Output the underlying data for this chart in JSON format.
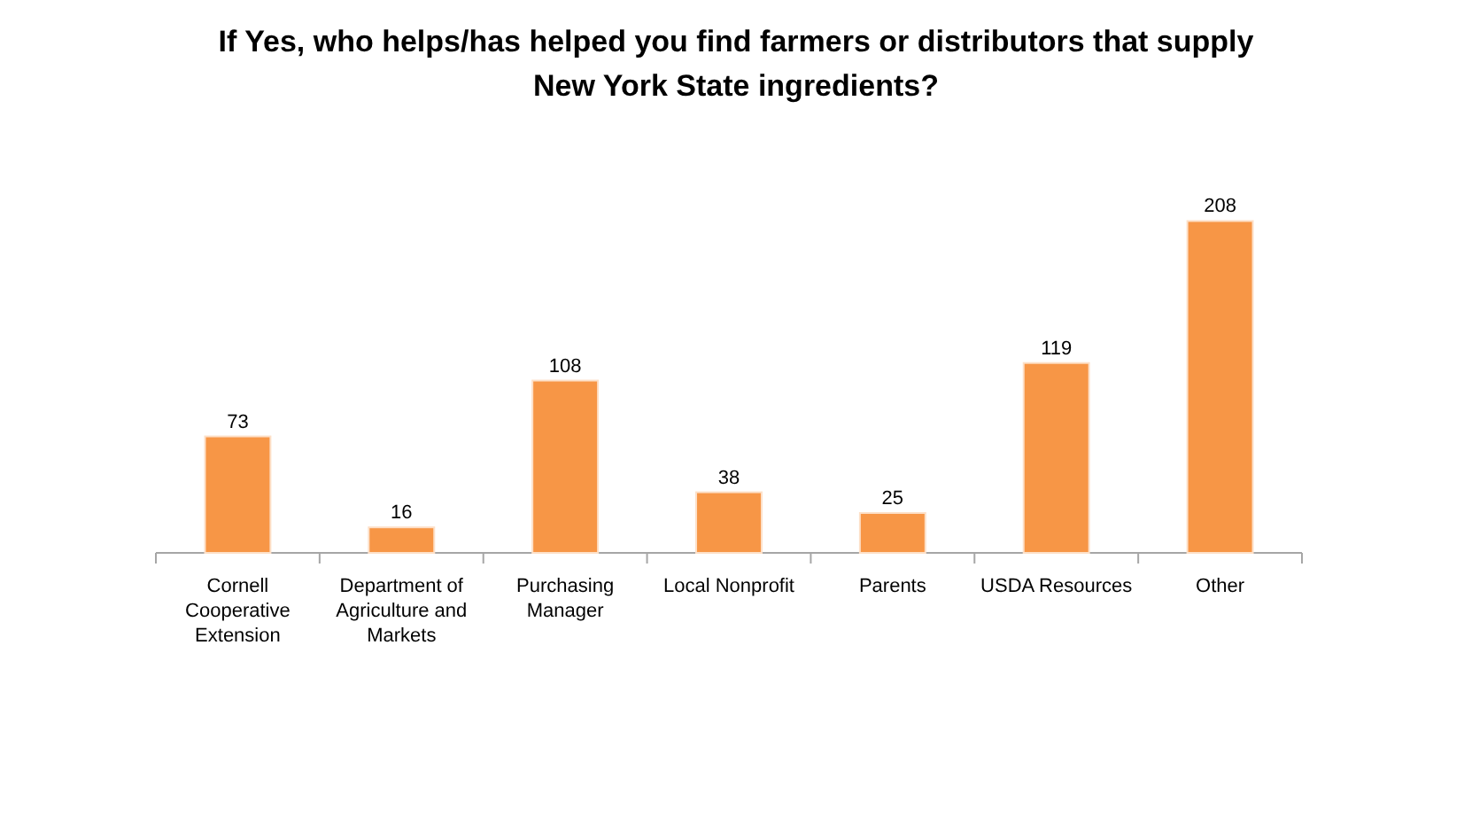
{
  "chart_data": {
    "type": "bar",
    "title": "If Yes, who helps/has helped you find farmers or distributors that supply New York State ingredients?",
    "categories": [
      "Cornell Cooperative Extension",
      "Department of Agriculture and Markets",
      "Purchasing Manager",
      "Local Nonprofit",
      "Parents",
      "USDA Resources",
      "Other"
    ],
    "values": [
      73,
      16,
      108,
      38,
      25,
      119,
      208
    ],
    "color": "#f79646",
    "data_labels": true
  }
}
